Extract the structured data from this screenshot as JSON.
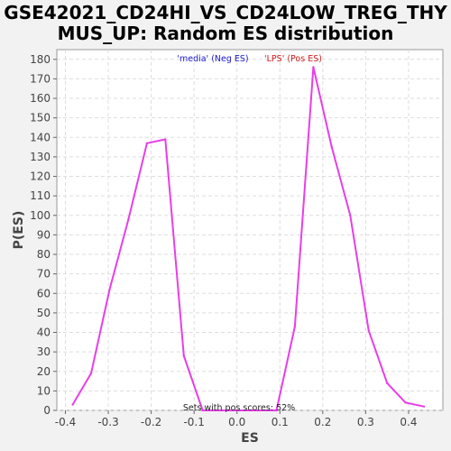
{
  "chart_data": {
    "type": "line",
    "title_lines": [
      "GSE42021_CD24HI_VS_CD24LOW_TREG_THY",
      "MUS_UP: Random ES distribution"
    ],
    "xlabel": "ES",
    "ylabel": "P(ES)",
    "xlim": [
      -0.42,
      0.48
    ],
    "ylim": [
      0,
      185
    ],
    "x_ticks": [
      -0.4,
      -0.3,
      -0.2,
      -0.1,
      0.0,
      0.1,
      0.2,
      0.3,
      0.4
    ],
    "x_tick_labels": [
      "-0.4",
      "-0.3",
      "-0.2",
      "-0.1",
      "0.0",
      "0.1",
      "0.2",
      "0.3",
      "0.4"
    ],
    "y_ticks": [
      0,
      10,
      20,
      30,
      40,
      50,
      60,
      70,
      80,
      90,
      100,
      110,
      120,
      130,
      140,
      150,
      160,
      170,
      180
    ],
    "y_tick_labels": [
      "0",
      "10",
      "20",
      "30",
      "40",
      "50",
      "60",
      "70",
      "80",
      "90",
      "100",
      "110",
      "120",
      "130",
      "140",
      "150",
      "160",
      "170",
      "180"
    ],
    "legend": {
      "neg_label": "'media' (Neg ES)",
      "pos_label": "'LPS' (Pos ES)"
    },
    "annotation": "Sets with pos scores: 52%",
    "grid": true,
    "series": [
      {
        "color": "#e83ee8",
        "x": [
          -0.383,
          -0.34,
          -0.297,
          -0.253,
          -0.21,
          -0.167,
          -0.124,
          -0.08,
          -0.037,
          0.006,
          0.049,
          0.092,
          0.135,
          0.178,
          0.221,
          0.264,
          0.307,
          0.35,
          0.393,
          0.436
        ],
        "y": [
          3,
          19,
          62,
          98,
          137,
          139,
          28,
          0,
          0,
          0,
          0,
          0,
          43,
          176,
          135,
          100,
          41,
          14,
          4,
          2
        ]
      }
    ]
  }
}
